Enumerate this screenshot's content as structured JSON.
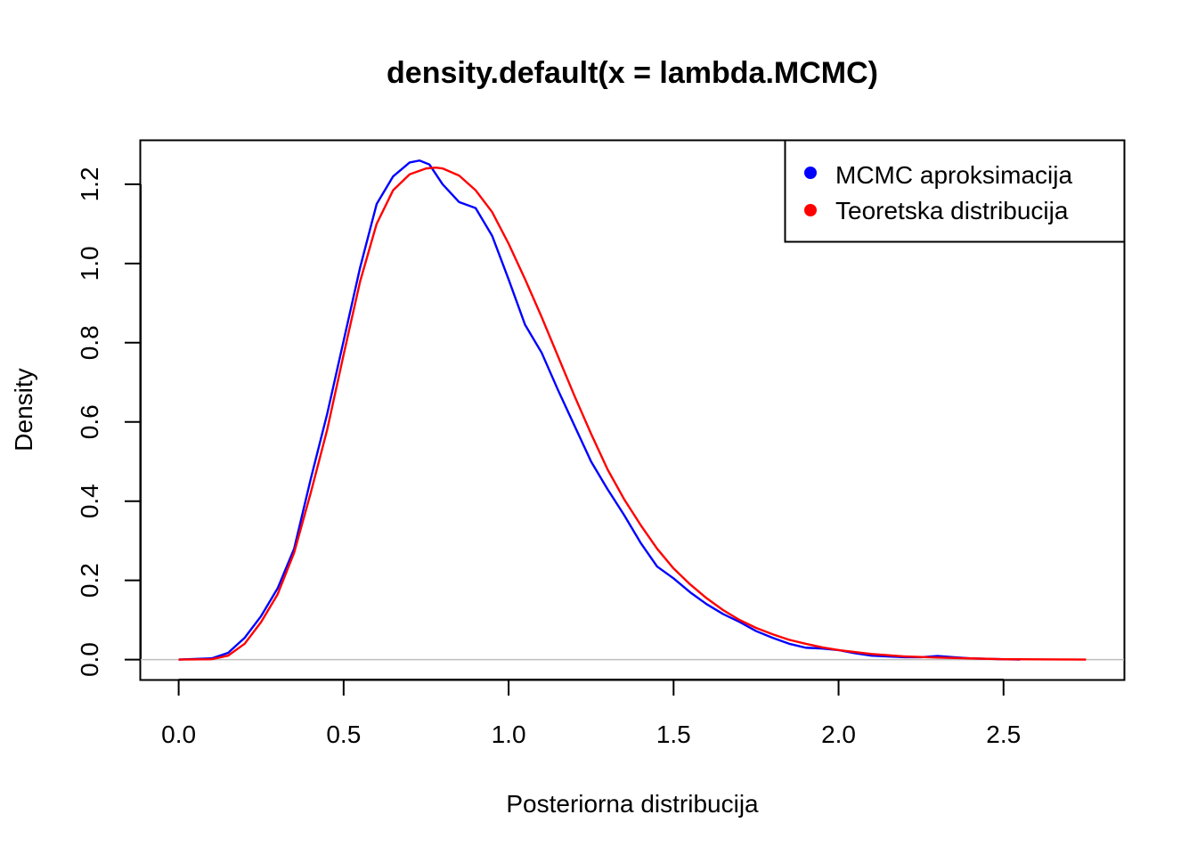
{
  "chart_data": {
    "type": "line",
    "title": "density.default(x = lambda.MCMC)",
    "xlabel": "Posteriorna distribucija",
    "ylabel": "Density",
    "xlim": [
      -0.115,
      2.865
    ],
    "ylim": [
      -0.0504,
      1.31
    ],
    "xticks": [
      "0.0",
      "0.5",
      "1.0",
      "1.5",
      "2.0",
      "2.5"
    ],
    "yticks": [
      "0.0",
      "0.2",
      "0.4",
      "0.6",
      "0.8",
      "1.0",
      "1.2"
    ],
    "grid": false,
    "zero_line": true,
    "legend": {
      "position": "top-right",
      "entries": [
        {
          "label": "MCMC aproksimacija",
          "color": "#0000ff"
        },
        {
          "label": "Teoretska distribucija",
          "color": "#ff0000"
        }
      ]
    },
    "series": [
      {
        "name": "MCMC aproksimacija",
        "color": "#0000ff",
        "x": [
          0.0,
          0.1,
          0.15,
          0.2,
          0.25,
          0.3,
          0.35,
          0.4,
          0.45,
          0.5,
          0.55,
          0.6,
          0.65,
          0.7,
          0.73,
          0.76,
          0.8,
          0.85,
          0.9,
          0.95,
          1.0,
          1.05,
          1.1,
          1.15,
          1.2,
          1.25,
          1.3,
          1.35,
          1.4,
          1.45,
          1.5,
          1.55,
          1.6,
          1.65,
          1.7,
          1.75,
          1.8,
          1.85,
          1.9,
          1.95,
          2.0,
          2.05,
          2.1,
          2.15,
          2.2,
          2.25,
          2.3,
          2.35,
          2.4,
          2.45,
          2.5,
          2.55
        ],
        "y": [
          0.0,
          0.003,
          0.017,
          0.055,
          0.11,
          0.18,
          0.28,
          0.455,
          0.62,
          0.805,
          0.99,
          1.15,
          1.22,
          1.255,
          1.26,
          1.25,
          1.2,
          1.155,
          1.14,
          1.07,
          0.96,
          0.845,
          0.775,
          0.68,
          0.59,
          0.5,
          0.43,
          0.365,
          0.295,
          0.235,
          0.205,
          0.17,
          0.14,
          0.115,
          0.095,
          0.072,
          0.055,
          0.04,
          0.03,
          0.028,
          0.024,
          0.016,
          0.01,
          0.008,
          0.006,
          0.006,
          0.009,
          0.006,
          0.003,
          0.002,
          0.001,
          0.0
        ]
      },
      {
        "name": "Teoretska distribucija",
        "color": "#ff0000",
        "x": [
          0.0,
          0.1,
          0.15,
          0.2,
          0.25,
          0.3,
          0.35,
          0.4,
          0.45,
          0.5,
          0.55,
          0.6,
          0.65,
          0.7,
          0.75,
          0.78,
          0.8,
          0.85,
          0.9,
          0.95,
          1.0,
          1.05,
          1.1,
          1.15,
          1.2,
          1.25,
          1.3,
          1.35,
          1.4,
          1.45,
          1.5,
          1.55,
          1.6,
          1.65,
          1.7,
          1.75,
          1.8,
          1.85,
          1.9,
          1.95,
          2.0,
          2.1,
          2.2,
          2.3,
          2.4,
          2.5,
          2.6,
          2.75
        ],
        "y": [
          0.0,
          0.001,
          0.01,
          0.04,
          0.095,
          0.165,
          0.27,
          0.42,
          0.58,
          0.77,
          0.955,
          1.1,
          1.185,
          1.225,
          1.24,
          1.242,
          1.24,
          1.222,
          1.185,
          1.13,
          1.05,
          0.96,
          0.865,
          0.765,
          0.665,
          0.57,
          0.48,
          0.405,
          0.34,
          0.28,
          0.23,
          0.19,
          0.155,
          0.125,
          0.1,
          0.08,
          0.064,
          0.05,
          0.04,
          0.031,
          0.024,
          0.014,
          0.008,
          0.005,
          0.003,
          0.001,
          0.0005,
          0.0
        ]
      }
    ]
  }
}
